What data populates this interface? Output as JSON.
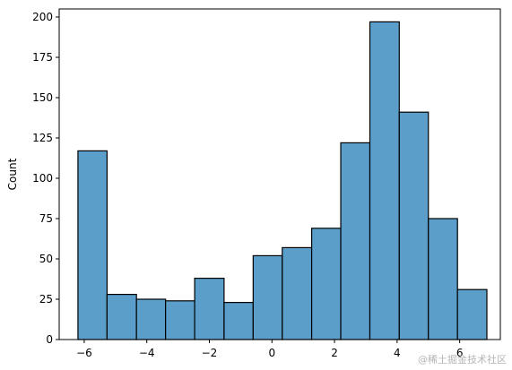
{
  "chart_data": {
    "type": "bar",
    "ylabel": "Count",
    "xlim": [
      -6.8,
      7.3
    ],
    "ylim": [
      0,
      205
    ],
    "xticks": [
      -6,
      -4,
      -2,
      0,
      2,
      4,
      6
    ],
    "xtick_labels": [
      "−6",
      "−4",
      "−2",
      "0",
      "2",
      "4",
      "6"
    ],
    "yticks": [
      0,
      25,
      50,
      75,
      100,
      125,
      150,
      175,
      200
    ],
    "ytick_labels": [
      "0",
      "25",
      "50",
      "75",
      "100",
      "125",
      "150",
      "175",
      "200"
    ],
    "bin_edges": [
      -6.2,
      -5.27,
      -4.33,
      -3.4,
      -2.47,
      -1.53,
      -0.6,
      0.33,
      1.27,
      2.2,
      3.13,
      4.07,
      5.0,
      5.93,
      6.87
    ],
    "values": [
      117,
      28,
      25,
      24,
      38,
      23,
      52,
      57,
      69,
      122,
      197,
      141,
      75,
      31
    ],
    "grid": false,
    "bar_color": "#5b9ec9",
    "edge_color": "#000000"
  },
  "watermark": "@稀土掘金技术社区"
}
